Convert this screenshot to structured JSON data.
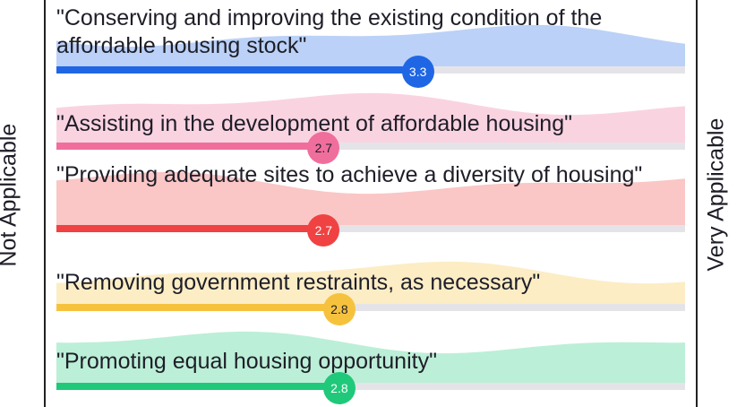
{
  "chart_data": {
    "type": "scale",
    "categories": [
      "\"Conserving and improving the existing condition of the affordable housing stock\"",
      "\"Assisting in the development of affordable housing\"",
      "\"Providing adequate sites to achieve a diversity of housing\"",
      "\"Removing government restraints, as necessary\"",
      "\"Promoting equal housing opportunity\""
    ],
    "values": [
      3.3,
      2.7,
      2.7,
      2.8,
      2.8
    ],
    "colors": [
      "#1f66e5",
      "#f06e9c",
      "#f04242",
      "#f6c23e",
      "#20c97a"
    ],
    "xlim": [
      1,
      5
    ],
    "min_label": "Not Applicable",
    "max_label": "Very Applicable"
  }
}
